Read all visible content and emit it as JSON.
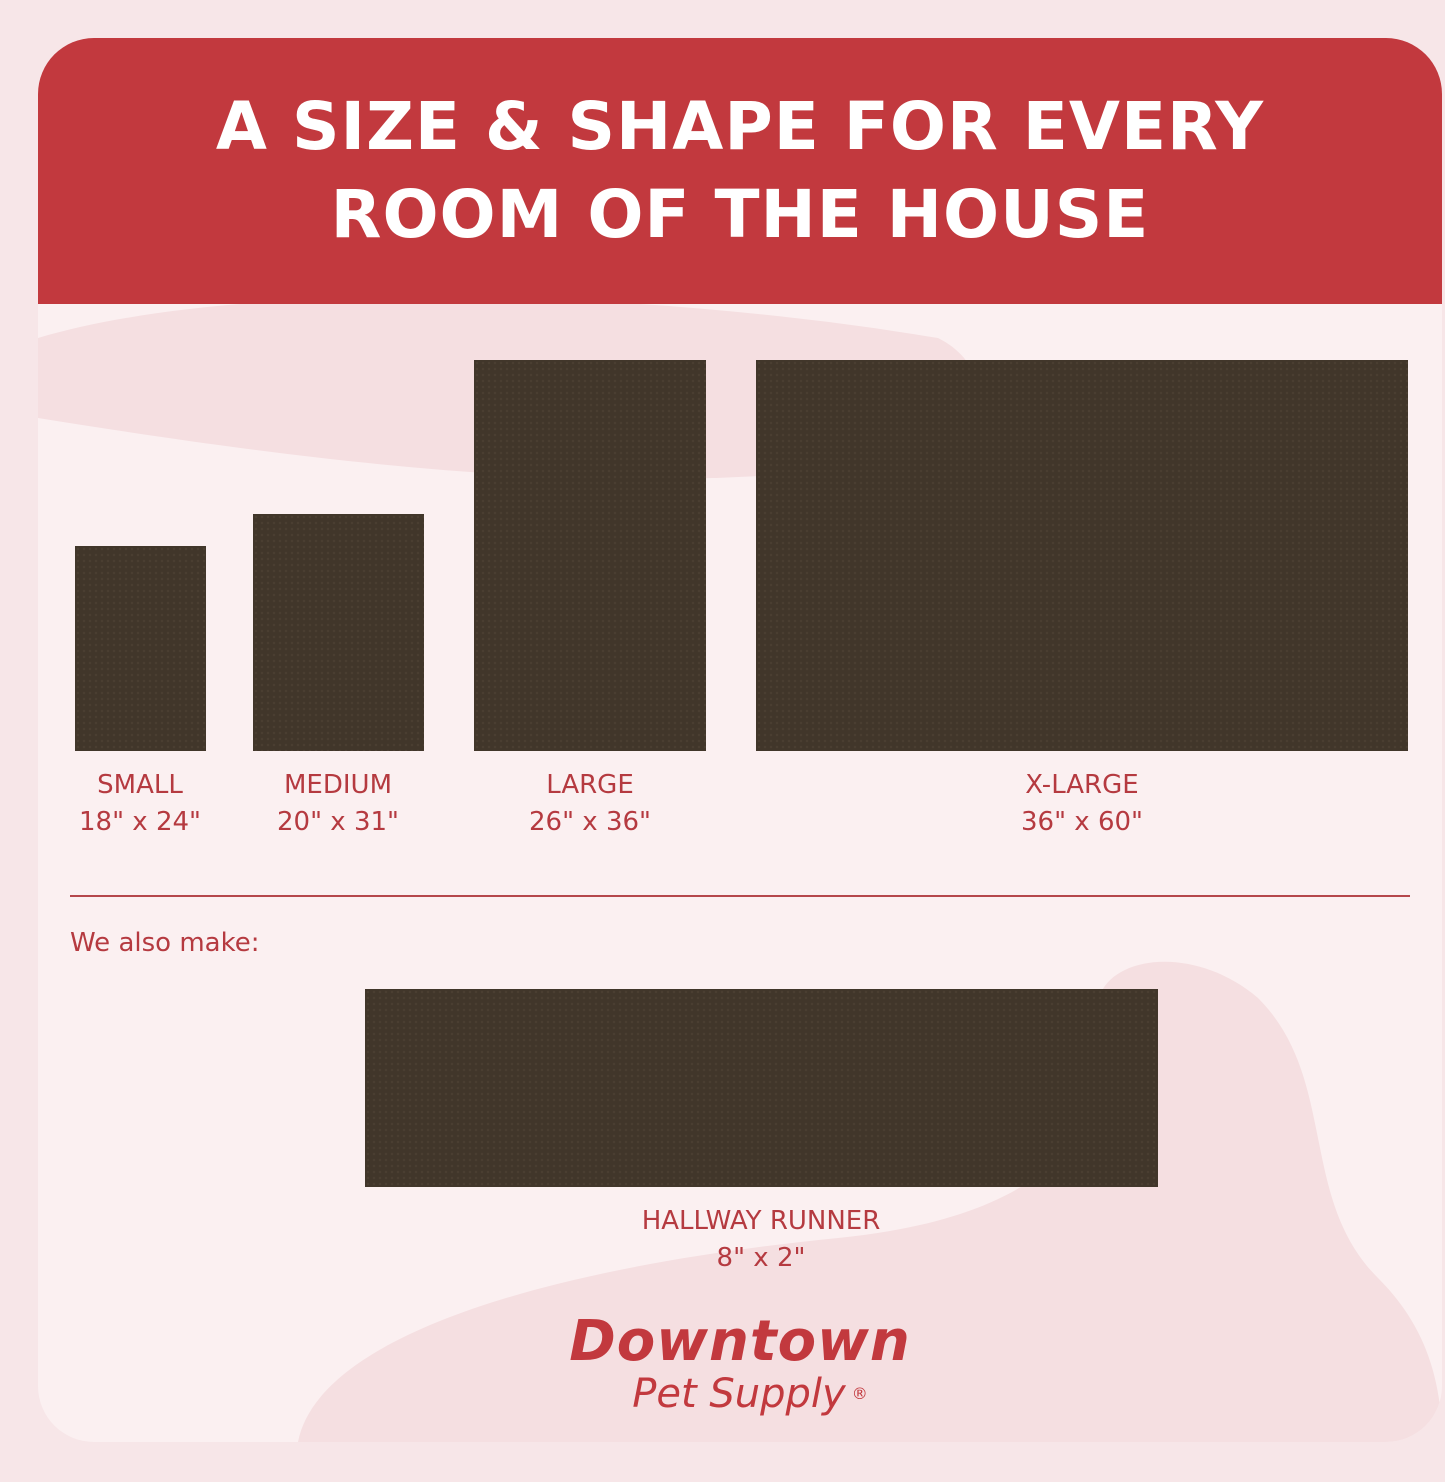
{
  "header": {
    "line1": "A SIZE & SHAPE FOR EVERY",
    "line2": "ROOM OF THE HOUSE"
  },
  "sizes": [
    {
      "name": "SMALL",
      "dims": "18\" x 24\""
    },
    {
      "name": "MEDIUM",
      "dims": "20\" x 31\""
    },
    {
      "name": "LARGE",
      "dims": "26\" x 36\""
    },
    {
      "name": "X-LARGE",
      "dims": "36\" x 60\""
    }
  ],
  "also": {
    "label": "We also make:",
    "name": "HALLWAY RUNNER",
    "dims": "8\" x 2\""
  },
  "logo": {
    "line1": "Downtown",
    "line2": "Pet Supply",
    "mark": "®"
  },
  "colors": {
    "brand_red": "#c2393e",
    "text_red": "#b53a40",
    "mat": "#41362a",
    "background": "#fbf0f1"
  }
}
